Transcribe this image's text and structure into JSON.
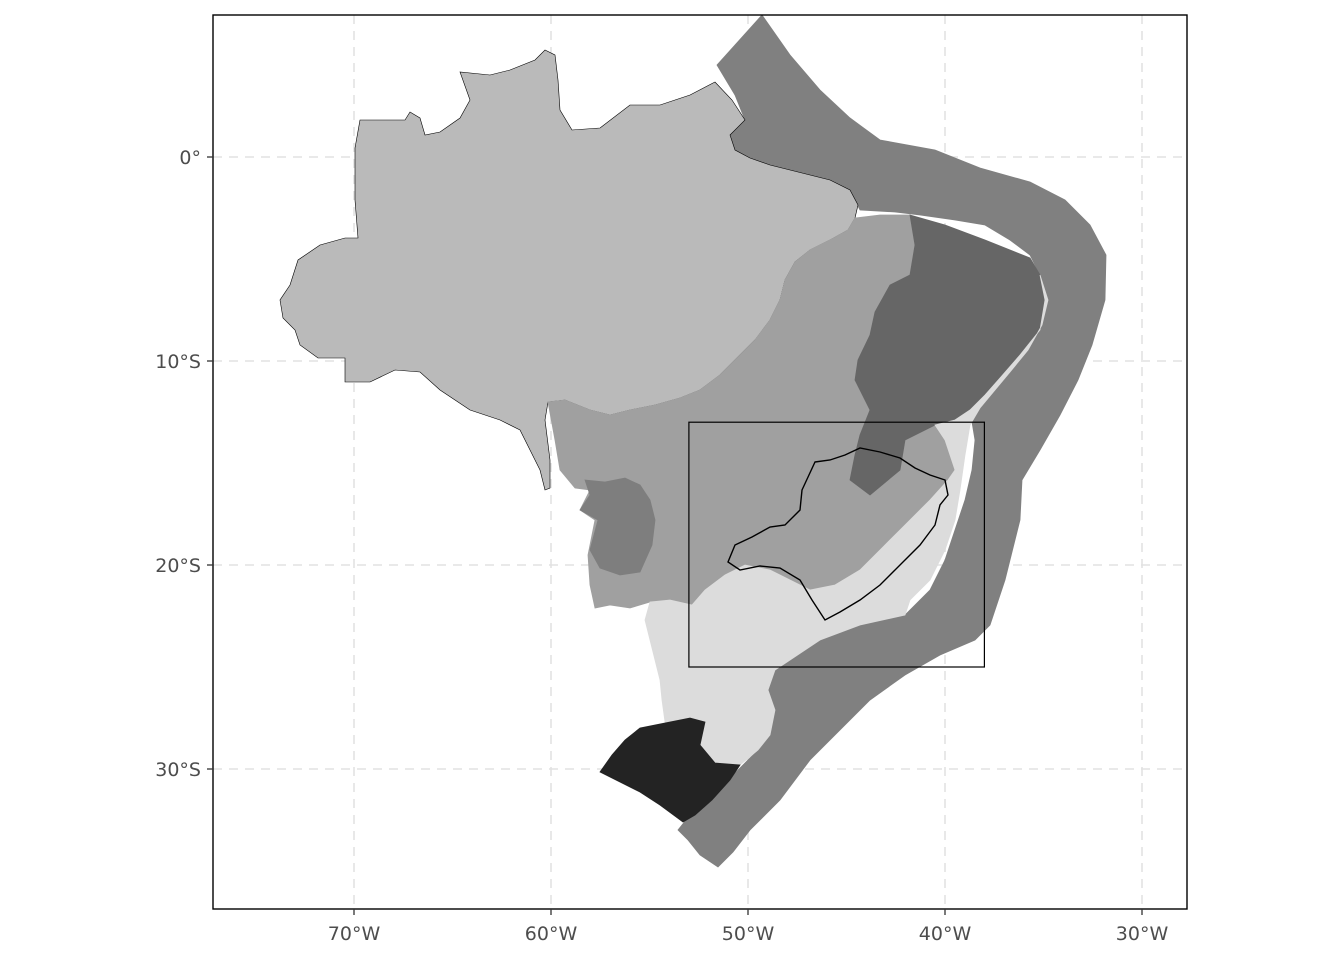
{
  "colors": {
    "background": "#ffffff",
    "amazon": "#bababa",
    "cerrado": "#a0a0a0",
    "pantanal": "#7e7e7e",
    "caatinga": "#666666",
    "atlantic_forest": "#dcdcdc",
    "pampa": "#232323",
    "ocean_zone": "#808080",
    "outline": "#000000"
  },
  "axes": {
    "x": {
      "range": [
        -77,
        -28
      ],
      "ticks": [
        {
          "value": -70,
          "label": "70°W"
        },
        {
          "value": -60,
          "label": "60°W"
        },
        {
          "value": -50,
          "label": "50°W"
        },
        {
          "value": -40,
          "label": "40°W"
        },
        {
          "value": -30,
          "label": "30°W"
        }
      ]
    },
    "y": {
      "range": [
        -37,
        7
      ],
      "ticks": [
        {
          "value": 0,
          "label": "0°"
        },
        {
          "value": -10,
          "label": "10°S"
        },
        {
          "value": -20,
          "label": "20°S"
        },
        {
          "value": -30,
          "label": "30°S"
        }
      ]
    }
  },
  "inset_box": {
    "lon_min": -53,
    "lon_max": -38,
    "lat_min": -25,
    "lat_max": -13
  },
  "layers": [
    "ocean_zone",
    "amazon",
    "cerrado",
    "pantanal",
    "caatinga",
    "atlantic_forest",
    "pampa",
    "state_outline",
    "inset_box"
  ]
}
